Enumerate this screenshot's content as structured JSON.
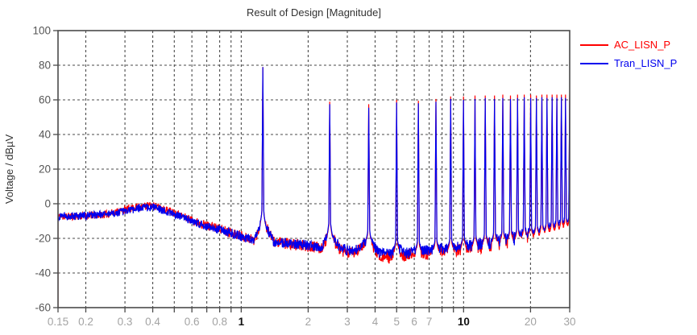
{
  "chart_data": {
    "type": "line",
    "title": "Result of Design [Magnitude]",
    "xlabel": "",
    "ylabel": "Voltage / dBµV",
    "xscale": "log",
    "xlim": [
      0.15,
      30
    ],
    "ylim": [
      -60,
      100
    ],
    "grid": "dashed",
    "legend_position": "top-right",
    "yticks": [
      100,
      80,
      60,
      40,
      20,
      0,
      -20,
      -40,
      -60
    ],
    "grid_y": [
      80,
      60,
      40,
      20,
      0,
      -20,
      -40
    ],
    "grid_x": [
      0.2,
      0.3,
      0.4,
      0.5,
      0.6,
      0.7,
      0.8,
      0.9,
      1,
      2,
      3,
      4,
      5,
      6,
      7,
      8,
      9,
      10,
      20
    ],
    "xtick_marks": [
      0.15,
      0.2,
      0.3,
      0.4,
      0.5,
      0.6,
      0.7,
      0.8,
      0.9,
      1,
      2,
      3,
      4,
      5,
      6,
      7,
      8,
      9,
      10,
      20,
      30
    ],
    "xtick_labels": [
      {
        "value": 0.15,
        "label": "0.15",
        "emph": false
      },
      {
        "value": 0.2,
        "label": "0.2",
        "emph": false
      },
      {
        "value": 0.3,
        "label": "0.3",
        "emph": false
      },
      {
        "value": 0.4,
        "label": "0.4",
        "emph": false
      },
      {
        "value": 0.6,
        "label": "0.6",
        "emph": false
      },
      {
        "value": 0.8,
        "label": "0.8",
        "emph": false
      },
      {
        "value": 1,
        "label": "1",
        "emph": true
      },
      {
        "value": 2,
        "label": "2",
        "emph": false
      },
      {
        "value": 3,
        "label": "3",
        "emph": false
      },
      {
        "value": 4,
        "label": "4",
        "emph": false
      },
      {
        "value": 5,
        "label": "5",
        "emph": false
      },
      {
        "value": 6,
        "label": "6",
        "emph": false
      },
      {
        "value": 7,
        "label": "7",
        "emph": false
      },
      {
        "value": 10,
        "label": "10",
        "emph": true
      },
      {
        "value": 20,
        "label": "20",
        "emph": false
      },
      {
        "value": 30,
        "label": "30",
        "emph": false
      }
    ],
    "fundamental_mhz": 1.25,
    "harmonic_count": 24,
    "series": [
      {
        "name": "AC_LISN_P",
        "color": "#ff0000",
        "seed": 11,
        "start_drop": true,
        "envelope": [
          [
            0.15,
            -7.5
          ],
          [
            0.2,
            -7
          ],
          [
            0.25,
            -6
          ],
          [
            0.3,
            -3.5
          ],
          [
            0.35,
            -1.5
          ],
          [
            0.4,
            -1
          ],
          [
            0.45,
            -3
          ],
          [
            0.5,
            -5
          ],
          [
            0.6,
            -9.5
          ],
          [
            0.7,
            -12.5
          ],
          [
            0.8,
            -14.5
          ],
          [
            0.9,
            -16.5
          ],
          [
            1.0,
            -18.5
          ],
          [
            1.15,
            -21
          ],
          [
            1.22,
            -12
          ],
          [
            1.25,
            -8
          ],
          [
            1.28,
            -12
          ],
          [
            1.4,
            -22
          ],
          [
            1.7,
            -23.5
          ],
          [
            2.0,
            -24.5
          ],
          [
            2.3,
            -25.5
          ],
          [
            2.45,
            -19
          ],
          [
            2.5,
            -15
          ],
          [
            2.55,
            -19
          ],
          [
            2.8,
            -27
          ],
          [
            3.2,
            -29
          ],
          [
            3.7,
            -22
          ],
          [
            3.75,
            -18
          ],
          [
            3.8,
            -22
          ],
          [
            4.2,
            -30
          ],
          [
            4.7,
            -31
          ],
          [
            5.0,
            -27
          ],
          [
            5.5,
            -30
          ],
          [
            6.25,
            -28
          ],
          [
            7.0,
            -29
          ],
          [
            7.5,
            -27.5
          ],
          [
            8.75,
            -27
          ],
          [
            10,
            -26
          ],
          [
            12,
            -24.5
          ],
          [
            15,
            -22.5
          ],
          [
            20,
            -20
          ],
          [
            25,
            -17.5
          ],
          [
            30,
            -15
          ]
        ],
        "noise_amp": [
          [
            0.15,
            2.2
          ],
          [
            0.5,
            2.2
          ],
          [
            1,
            3
          ],
          [
            3,
            3.5
          ],
          [
            8,
            3.5
          ],
          [
            15,
            4.5
          ],
          [
            30,
            6
          ]
        ],
        "peaks": [
          [
            1.25,
            79
          ],
          [
            2.5,
            59
          ],
          [
            3.75,
            57.5
          ],
          [
            5,
            60
          ],
          [
            6.25,
            59.5
          ],
          [
            7.5,
            60.5
          ],
          [
            8.75,
            62
          ],
          [
            10,
            62
          ],
          [
            11.25,
            62.5
          ],
          [
            12.5,
            62.5
          ],
          [
            13.75,
            62.5
          ],
          [
            15,
            63
          ],
          [
            16.25,
            62.5
          ],
          [
            17.5,
            63
          ],
          [
            18.75,
            63
          ],
          [
            20,
            63
          ],
          [
            21.25,
            62.5
          ],
          [
            22.5,
            63
          ],
          [
            23.75,
            63
          ],
          [
            25,
            63
          ],
          [
            26.25,
            63
          ],
          [
            27.5,
            63
          ],
          [
            28.75,
            63
          ],
          [
            30,
            63
          ]
        ]
      },
      {
        "name": "Tran_LISN_P",
        "color": "#0000ee",
        "seed": 4,
        "start_drop": false,
        "envelope": [
          [
            0.15,
            -7.5
          ],
          [
            0.2,
            -7
          ],
          [
            0.25,
            -6
          ],
          [
            0.3,
            -4.5
          ],
          [
            0.35,
            -2.5
          ],
          [
            0.4,
            -2
          ],
          [
            0.45,
            -4
          ],
          [
            0.5,
            -6
          ],
          [
            0.6,
            -10
          ],
          [
            0.7,
            -13
          ],
          [
            0.8,
            -15
          ],
          [
            0.9,
            -17
          ],
          [
            1.0,
            -19
          ],
          [
            1.15,
            -21
          ],
          [
            1.22,
            -12
          ],
          [
            1.25,
            -8
          ],
          [
            1.28,
            -12
          ],
          [
            1.4,
            -22
          ],
          [
            1.7,
            -23
          ],
          [
            2.0,
            -24
          ],
          [
            2.3,
            -25
          ],
          [
            2.45,
            -18
          ],
          [
            2.5,
            -14
          ],
          [
            2.55,
            -18
          ],
          [
            2.8,
            -26
          ],
          [
            3.2,
            -27.5
          ],
          [
            3.7,
            -21
          ],
          [
            3.75,
            -17
          ],
          [
            3.8,
            -21
          ],
          [
            4.2,
            -28.5
          ],
          [
            4.7,
            -29
          ],
          [
            5.0,
            -25.5
          ],
          [
            5.5,
            -28.5
          ],
          [
            6.25,
            -26.5
          ],
          [
            7.0,
            -27.5
          ],
          [
            7.5,
            -26
          ],
          [
            8.75,
            -25.5
          ],
          [
            10,
            -24.5
          ],
          [
            12,
            -23
          ],
          [
            15,
            -21
          ],
          [
            20,
            -18.5
          ],
          [
            25,
            -15.5
          ],
          [
            30,
            -12.5
          ]
        ],
        "noise_amp": [
          [
            0.15,
            2.2
          ],
          [
            0.5,
            2.2
          ],
          [
            1,
            2.8
          ],
          [
            3,
            3
          ],
          [
            8,
            3.2
          ],
          [
            15,
            4
          ],
          [
            30,
            5.5
          ]
        ],
        "peaks": [
          [
            1.25,
            79
          ],
          [
            2.5,
            57.5
          ],
          [
            3.75,
            55.5
          ],
          [
            5,
            58.5
          ],
          [
            6.25,
            58
          ],
          [
            7.5,
            59
          ],
          [
            8.75,
            60.5
          ],
          [
            10,
            60
          ],
          [
            11.25,
            60.5
          ],
          [
            12.5,
            61
          ],
          [
            13.75,
            60.5
          ],
          [
            15,
            61
          ],
          [
            16.25,
            60.5
          ],
          [
            17.5,
            61
          ],
          [
            18.75,
            61.5
          ],
          [
            20,
            61
          ],
          [
            21.25,
            61
          ],
          [
            22.5,
            61.5
          ],
          [
            23.75,
            61
          ],
          [
            25,
            61.5
          ],
          [
            26.25,
            61
          ],
          [
            27.5,
            61.5
          ],
          [
            28.75,
            61
          ],
          [
            30,
            61
          ]
        ]
      }
    ]
  },
  "colors": {
    "background": "#ffffff",
    "grid": "#4a4a4a",
    "frame": "#4a4a4a",
    "title": "#333333",
    "ytick_label": "#555555",
    "xtick_minor": "#a3a3a3",
    "xtick_major": "#111111"
  }
}
